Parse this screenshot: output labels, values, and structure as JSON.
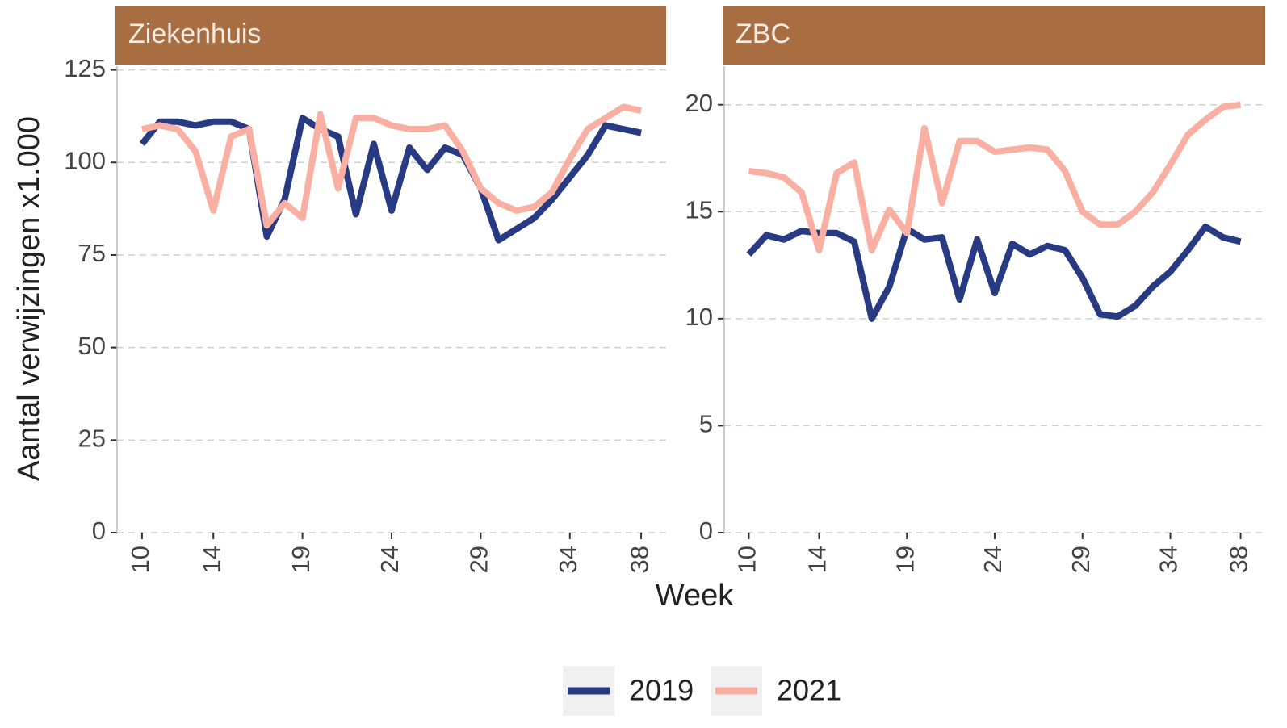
{
  "chart_data": [
    {
      "type": "line",
      "title": "Ziekenhuis",
      "xlabel": "Week",
      "ylabel": "Aantal verwijzingen x1.000",
      "x": [
        10,
        11,
        12,
        13,
        14,
        15,
        16,
        17,
        18,
        19,
        20,
        21,
        22,
        23,
        24,
        25,
        26,
        27,
        28,
        29,
        30,
        31,
        32,
        33,
        34,
        35,
        36,
        37,
        38
      ],
      "xlim": [
        8.6,
        39.4
      ],
      "xticks": [
        10,
        14,
        19,
        24,
        29,
        34,
        38
      ],
      "ylim": [
        0,
        126
      ],
      "yticks": [
        0,
        25,
        50,
        75,
        100,
        125
      ],
      "grid": true,
      "series": [
        {
          "name": "2019",
          "color": "#283a82",
          "values": [
            105,
            111,
            111,
            110,
            111,
            111,
            109,
            80,
            90,
            112,
            109,
            107,
            86,
            105,
            87,
            104,
            98,
            104,
            102,
            93,
            79,
            82,
            85,
            90,
            96,
            102,
            110,
            109,
            108
          ]
        },
        {
          "name": "2021",
          "color": "#f9b0a2",
          "values": [
            109,
            110,
            109,
            103,
            87,
            107,
            109,
            83,
            89,
            85,
            113,
            93,
            112,
            112,
            110,
            109,
            109,
            110,
            103,
            93,
            89,
            87,
            88,
            92,
            101,
            109,
            112,
            115,
            114
          ]
        }
      ]
    },
    {
      "type": "line",
      "title": "ZBC",
      "x": [
        10,
        11,
        12,
        13,
        14,
        15,
        16,
        17,
        18,
        19,
        20,
        21,
        22,
        23,
        24,
        25,
        26,
        27,
        28,
        29,
        30,
        31,
        32,
        33,
        34,
        35,
        36,
        37,
        38
      ],
      "xlim": [
        8.6,
        39.4
      ],
      "xticks": [
        10,
        14,
        19,
        24,
        29,
        34,
        38
      ],
      "ylim": [
        0,
        21.8
      ],
      "yticks": [
        0,
        5,
        10,
        15,
        20
      ],
      "grid": true,
      "series": [
        {
          "name": "2019",
          "color": "#283a82",
          "values": [
            13.0,
            13.9,
            13.7,
            14.1,
            14.0,
            14.0,
            13.6,
            10.0,
            11.5,
            14.2,
            13.7,
            13.8,
            10.9,
            13.7,
            11.2,
            13.5,
            13.0,
            13.4,
            13.2,
            11.9,
            10.2,
            10.1,
            10.6,
            11.5,
            12.2,
            13.2,
            14.3,
            13.8,
            13.6
          ]
        },
        {
          "name": "2021",
          "color": "#f9b0a2",
          "values": [
            16.9,
            16.8,
            16.6,
            15.9,
            13.2,
            16.8,
            17.3,
            13.2,
            15.1,
            14.0,
            18.9,
            15.4,
            18.3,
            18.3,
            17.8,
            17.9,
            18.0,
            17.9,
            16.9,
            15.0,
            14.4,
            14.4,
            15.0,
            15.9,
            17.2,
            18.6,
            19.3,
            19.9,
            20.0
          ]
        }
      ]
    }
  ]
}
